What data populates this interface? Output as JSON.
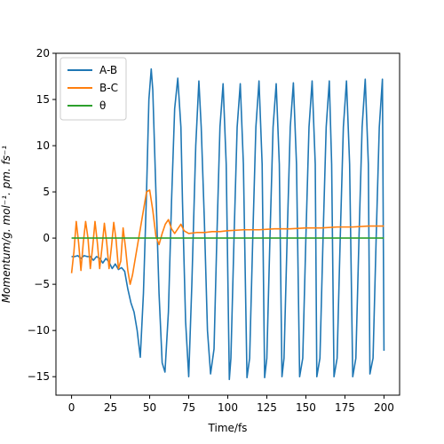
{
  "chart_data": {
    "type": "line",
    "title": "",
    "xlabel": "Time/fs",
    "ylabel": "Momentum/g. mol⁻¹. pm. fs⁻¹",
    "xlim": [
      -10,
      210
    ],
    "ylim": [
      -17,
      20
    ],
    "xticks": [
      0,
      25,
      50,
      75,
      100,
      125,
      150,
      175,
      200
    ],
    "yticks": [
      -15,
      -10,
      -5,
      0,
      5,
      10,
      15,
      20
    ],
    "legend": "top-left",
    "grid": false,
    "series": [
      {
        "name": "A-B",
        "color": "#1f77b4",
        "x": [
          0,
          2,
          4,
          6,
          8,
          10,
          12,
          14,
          16,
          18,
          20,
          22,
          24,
          26,
          28,
          30,
          32,
          34,
          36,
          38,
          40,
          42,
          44,
          46,
          48,
          49.5,
          51,
          52,
          54,
          56,
          58,
          59.8,
          62,
          64,
          66,
          68,
          70,
          71,
          73,
          75,
          77,
          79.5,
          81.5,
          83,
          85,
          87,
          89,
          91.2,
          93,
          95,
          97,
          99,
          101,
          102,
          104,
          106,
          108,
          110,
          112.3,
          114,
          116,
          118,
          120,
          122,
          123.6,
          125,
          127,
          129,
          131,
          133,
          134.7,
          136,
          138,
          140,
          142,
          144,
          146,
          148,
          150,
          152,
          154,
          156,
          157,
          159,
          161,
          163,
          165,
          166.5,
          168,
          170,
          172,
          174,
          176,
          178,
          180,
          182,
          184,
          186,
          188,
          190,
          191,
          193,
          195,
          197,
          199,
          200
        ],
        "y": [
          -2.0,
          -2.0,
          -1.9,
          -2.2,
          -1.9,
          -2.0,
          -2.0,
          -2.4,
          -2.0,
          -2.2,
          -2.7,
          -2.2,
          -2.6,
          -3.3,
          -2.8,
          -3.4,
          -3.2,
          -3.6,
          -5.5,
          -7.0,
          -8.0,
          -10.0,
          -12.9,
          -6.0,
          5.0,
          15.0,
          18.3,
          16.0,
          5.0,
          -6.0,
          -13.5,
          -14.5,
          -8.0,
          4.0,
          14.0,
          17.3,
          12.0,
          4.0,
          -9.0,
          -15.0,
          -5.0,
          10.0,
          17.0,
          12.0,
          2.0,
          -10.0,
          -14.7,
          -12.0,
          0.0,
          12.0,
          16.7,
          8.0,
          -15.3,
          -13.0,
          0.0,
          12.0,
          16.7,
          8.0,
          -15.1,
          -13.0,
          0.0,
          12.0,
          17.0,
          8.0,
          -15.1,
          -13.0,
          0.0,
          12.0,
          16.7,
          8.0,
          -15.0,
          -13.0,
          0.0,
          12.0,
          16.8,
          8.0,
          -15.0,
          -13.0,
          0.0,
          12.0,
          17.0,
          8.0,
          -15.0,
          -13.0,
          0.0,
          12.0,
          17.0,
          8.0,
          -15.0,
          -13.0,
          0.0,
          12.0,
          17.0,
          8.0,
          -15.0,
          -13.0,
          0.0,
          12.0,
          17.2,
          8.0,
          -14.7,
          -13.0,
          0.0,
          12.0,
          17.2,
          -12.2
        ]
      },
      {
        "name": "B-C",
        "color": "#ff7f0e",
        "x": [
          0,
          1.5,
          3,
          4.5,
          6,
          7.5,
          9,
          10.5,
          12,
          13.5,
          15,
          16.5,
          18,
          19.5,
          21,
          22.5,
          24,
          25.5,
          27,
          28.5,
          30,
          31.5,
          33,
          34.5,
          36,
          37.5,
          39,
          40.5,
          42,
          44,
          46,
          48,
          50,
          52,
          54,
          56,
          58,
          60,
          62,
          64,
          66,
          68,
          70,
          72,
          75,
          80,
          85,
          90,
          95,
          100,
          110,
          120,
          130,
          140,
          150,
          160,
          170,
          180,
          190,
          200
        ],
        "y": [
          -3.8,
          -1.5,
          1.8,
          -0.5,
          -3.5,
          -0.5,
          1.8,
          0.0,
          -3.3,
          -1.0,
          1.8,
          -0.5,
          -3.3,
          -1.0,
          1.6,
          -0.5,
          -3.3,
          -1.0,
          1.7,
          -0.2,
          -3.3,
          -2.5,
          1.1,
          -1.0,
          -3.5,
          -5.0,
          -4.0,
          -2.5,
          -1.0,
          1.0,
          3.0,
          5.0,
          5.2,
          3.0,
          0.2,
          -0.7,
          0.5,
          1.5,
          2.0,
          1.0,
          0.5,
          1.0,
          1.5,
          0.8,
          0.5,
          0.6,
          0.6,
          0.7,
          0.7,
          0.8,
          0.9,
          0.9,
          1.0,
          1.0,
          1.1,
          1.1,
          1.2,
          1.2,
          1.3,
          1.3
        ]
      },
      {
        "name": "θ",
        "color": "#2ca02c",
        "x": [
          0,
          200
        ],
        "y": [
          0,
          0
        ]
      }
    ]
  }
}
